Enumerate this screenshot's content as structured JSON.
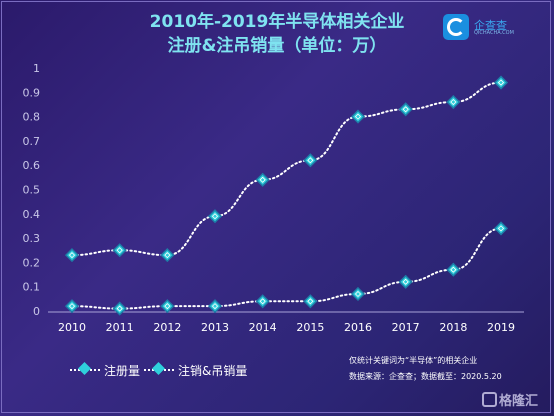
{
  "title_line1": "2010年-2019年半导体相关企业",
  "title_line2": "注册&注吊销量（单位：万）",
  "logo": {
    "name": "企查查",
    "sub": "QICHACHA.COM",
    "icon": "qichacha-c-logo"
  },
  "notes": {
    "line1": "仅统计关键词为“半导体”的相关企业",
    "line2": "数据来源：企查查；数据截至：2020.5.20"
  },
  "watermark": "格隆汇",
  "colors": {
    "line": "#ffffff",
    "marker_fill": "#2fd0dc",
    "marker_border": "#1e7ea8",
    "title": "#7fe3f0",
    "axis_text": "#c9c7e8"
  },
  "chart_data": {
    "type": "line",
    "categories": [
      "2010",
      "2011",
      "2012",
      "2013",
      "2014",
      "2015",
      "2016",
      "2017",
      "2018",
      "2019"
    ],
    "y_ticks": [
      "0",
      "0.1",
      "0.2",
      "0.3",
      "0.4",
      "0.5",
      "0.6",
      "0.7",
      "0.8",
      "0.9",
      "1"
    ],
    "ylim": [
      0,
      1
    ],
    "grid": false,
    "legend_position": "bottom-left",
    "series": [
      {
        "name": "注册量",
        "values": [
          0.23,
          0.25,
          0.23,
          0.39,
          0.54,
          0.62,
          0.8,
          0.83,
          0.86,
          0.94
        ]
      },
      {
        "name": "注销&吊销量",
        "values": [
          0.02,
          0.01,
          0.02,
          0.02,
          0.04,
          0.04,
          0.07,
          0.12,
          0.17,
          0.34
        ]
      }
    ],
    "marker": "diamond"
  }
}
